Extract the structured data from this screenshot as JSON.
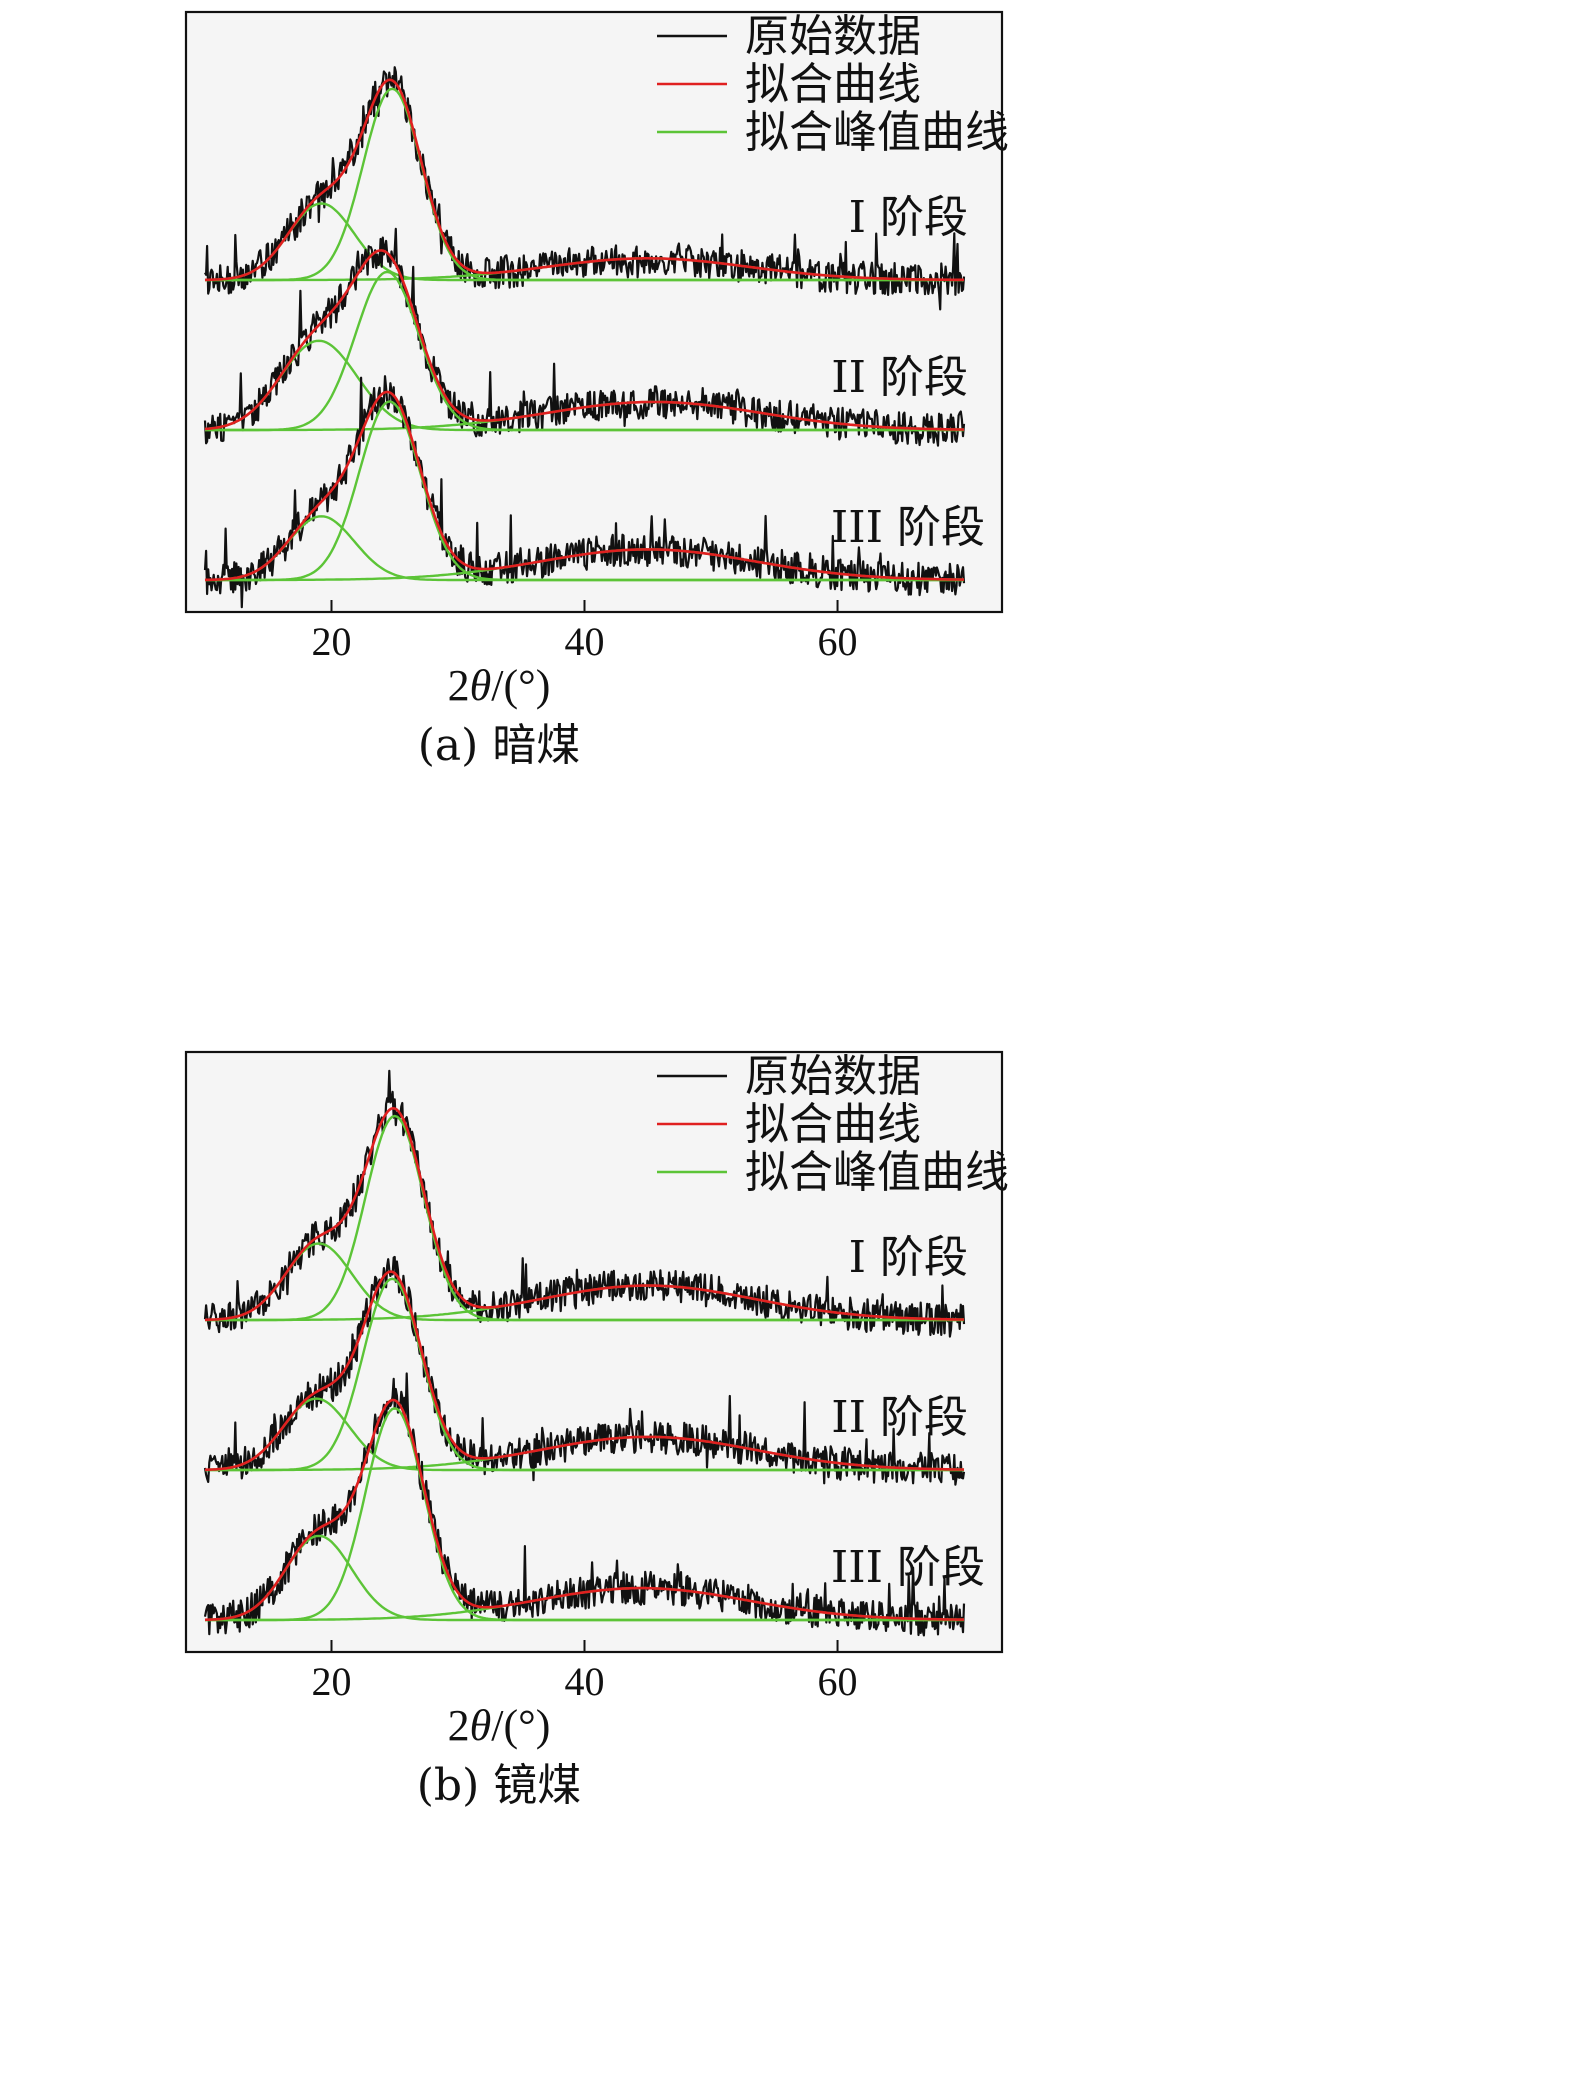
{
  "chart_data": [
    {
      "type": "line",
      "caption": "(a) 暗煤",
      "xlabel_prefix": "2",
      "xlabel_theta": "θ",
      "xlabel_suffix": "/(°)",
      "xlim": [
        8.5,
        73
      ],
      "xticks": [
        "20",
        "40",
        "60"
      ],
      "xtick_values": [
        20,
        40,
        60
      ],
      "legend": [
        {
          "label": "原始数据",
          "color": "#111111"
        },
        {
          "label": "拟合曲线",
          "color": "#e02020"
        },
        {
          "label": "拟合峰值曲线",
          "color": "#5cc437"
        }
      ],
      "series": [
        {
          "stage": "I 阶段",
          "peaks": [
            {
              "center": 19.2,
              "height": 0.3,
              "width": 2.6
            },
            {
              "center": 24.8,
              "height": 0.75,
              "width": 2.3
            },
            {
              "center": 45.0,
              "height": 0.085,
              "width": 8.0
            }
          ]
        },
        {
          "stage": "II 阶段",
          "peaks": [
            {
              "center": 19.0,
              "height": 0.35,
              "width": 3.0
            },
            {
              "center": 24.4,
              "height": 0.62,
              "width": 2.5
            },
            {
              "center": 45.5,
              "height": 0.11,
              "width": 8.5
            }
          ]
        },
        {
          "stage": "III 阶段",
          "peaks": [
            {
              "center": 19.2,
              "height": 0.25,
              "width": 2.6
            },
            {
              "center": 24.6,
              "height": 0.7,
              "width": 2.4
            },
            {
              "center": 45.0,
              "height": 0.12,
              "width": 8.5
            }
          ]
        }
      ]
    },
    {
      "type": "line",
      "caption": "(b) 镜煤",
      "xlabel_prefix": "2",
      "xlabel_theta": "θ",
      "xlabel_suffix": "/(°)",
      "xlim": [
        8.5,
        73
      ],
      "xticks": [
        "20",
        "40",
        "60"
      ],
      "xtick_values": [
        20,
        40,
        60
      ],
      "legend": [
        {
          "label": "原始数据",
          "color": "#111111"
        },
        {
          "label": "拟合曲线",
          "color": "#e02020"
        },
        {
          "label": "拟合峰值曲线",
          "color": "#5cc437"
        }
      ],
      "series": [
        {
          "stage": "I 阶段",
          "peaks": [
            {
              "center": 19.0,
              "height": 0.3,
              "width": 2.6
            },
            {
              "center": 25.0,
              "height": 0.8,
              "width": 2.3
            },
            {
              "center": 45.0,
              "height": 0.135,
              "width": 8.5
            }
          ]
        },
        {
          "stage": "II 阶段",
          "peaks": [
            {
              "center": 18.8,
              "height": 0.28,
              "width": 2.6
            },
            {
              "center": 24.8,
              "height": 0.75,
              "width": 2.3
            },
            {
              "center": 45.0,
              "height": 0.13,
              "width": 8.5
            }
          ]
        },
        {
          "stage": "III 阶段",
          "peaks": [
            {
              "center": 19.0,
              "height": 0.33,
              "width": 2.6
            },
            {
              "center": 25.0,
              "height": 0.83,
              "width": 2.3
            },
            {
              "center": 44.5,
              "height": 0.125,
              "width": 8.5
            }
          ]
        }
      ]
    }
  ]
}
